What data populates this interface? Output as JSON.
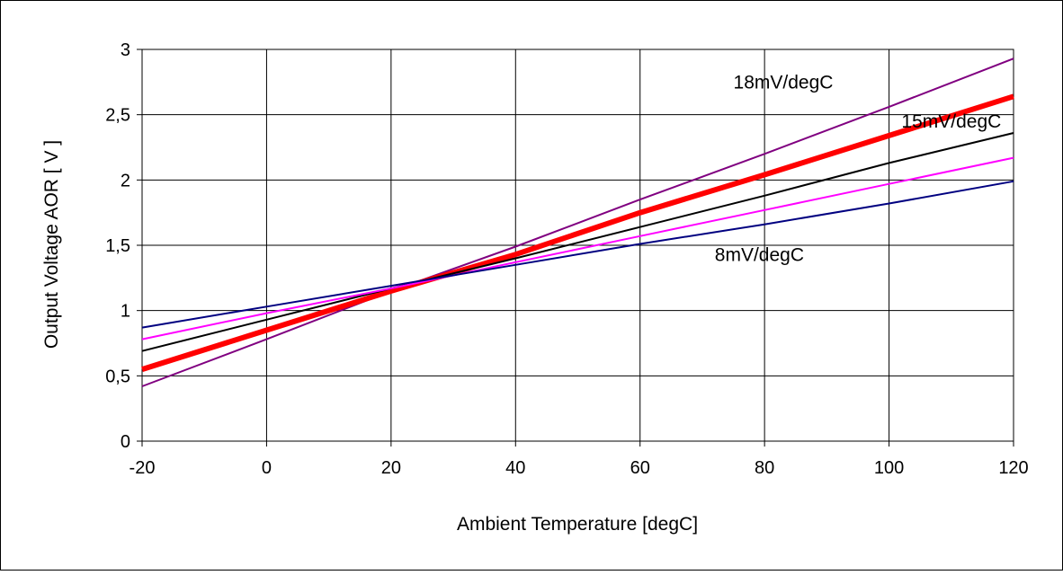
{
  "chart_data": {
    "type": "line",
    "title": "",
    "xlabel": "Ambient Temperature [degC]",
    "ylabel": "Output Voltage AOR [ V ]",
    "xlim": [
      -20,
      120
    ],
    "ylim": [
      0,
      3
    ],
    "x_ticks": [
      -20,
      0,
      20,
      40,
      60,
      80,
      100,
      120
    ],
    "x_tick_labels": [
      "-20",
      "0",
      "20",
      "40",
      "60",
      "80",
      "100",
      "120"
    ],
    "y_ticks": [
      0,
      0.5,
      1,
      1.5,
      2,
      2.5,
      3
    ],
    "y_tick_labels": [
      "0",
      "0,5",
      "1",
      "1,5",
      "2",
      "2,5",
      "3"
    ],
    "grid": true,
    "legend": "none",
    "annotations": [
      {
        "text": "18mV/degC",
        "x": 75,
        "y": 2.7
      },
      {
        "text": "15mV/degC",
        "x": 102,
        "y": 2.4
      },
      {
        "text": "8mV/degC",
        "x": 72,
        "y": 1.38
      }
    ],
    "series": [
      {
        "color": "#800080",
        "width": 2,
        "points": [
          [
            -20,
            0.42
          ],
          [
            0,
            0.78
          ],
          [
            20,
            1.15
          ],
          [
            40,
            1.49
          ],
          [
            60,
            1.85
          ],
          [
            80,
            2.2
          ],
          [
            100,
            2.56
          ],
          [
            120,
            2.93
          ]
        ]
      },
      {
        "color": "#ff0000",
        "width": 6,
        "points": [
          [
            -20,
            0.55
          ],
          [
            0,
            0.85
          ],
          [
            20,
            1.15
          ],
          [
            40,
            1.43
          ],
          [
            60,
            1.75
          ],
          [
            80,
            2.04
          ],
          [
            100,
            2.34
          ],
          [
            120,
            2.64
          ]
        ]
      },
      {
        "color": "#000000",
        "width": 2,
        "points": [
          [
            -20,
            0.69
          ],
          [
            0,
            0.93
          ],
          [
            20,
            1.17
          ],
          [
            40,
            1.4
          ],
          [
            60,
            1.64
          ],
          [
            80,
            1.88
          ],
          [
            100,
            2.13
          ],
          [
            120,
            2.36
          ]
        ]
      },
      {
        "color": "#ff00ff",
        "width": 2,
        "points": [
          [
            -20,
            0.78
          ],
          [
            0,
            0.98
          ],
          [
            20,
            1.17
          ],
          [
            40,
            1.37
          ],
          [
            60,
            1.57
          ],
          [
            80,
            1.77
          ],
          [
            100,
            1.97
          ],
          [
            120,
            2.17
          ]
        ]
      },
      {
        "color": "#000080",
        "width": 2,
        "points": [
          [
            -20,
            0.87
          ],
          [
            0,
            1.03
          ],
          [
            20,
            1.19
          ],
          [
            40,
            1.35
          ],
          [
            60,
            1.51
          ],
          [
            80,
            1.66
          ],
          [
            100,
            1.82
          ],
          [
            120,
            1.99
          ]
        ]
      }
    ]
  }
}
